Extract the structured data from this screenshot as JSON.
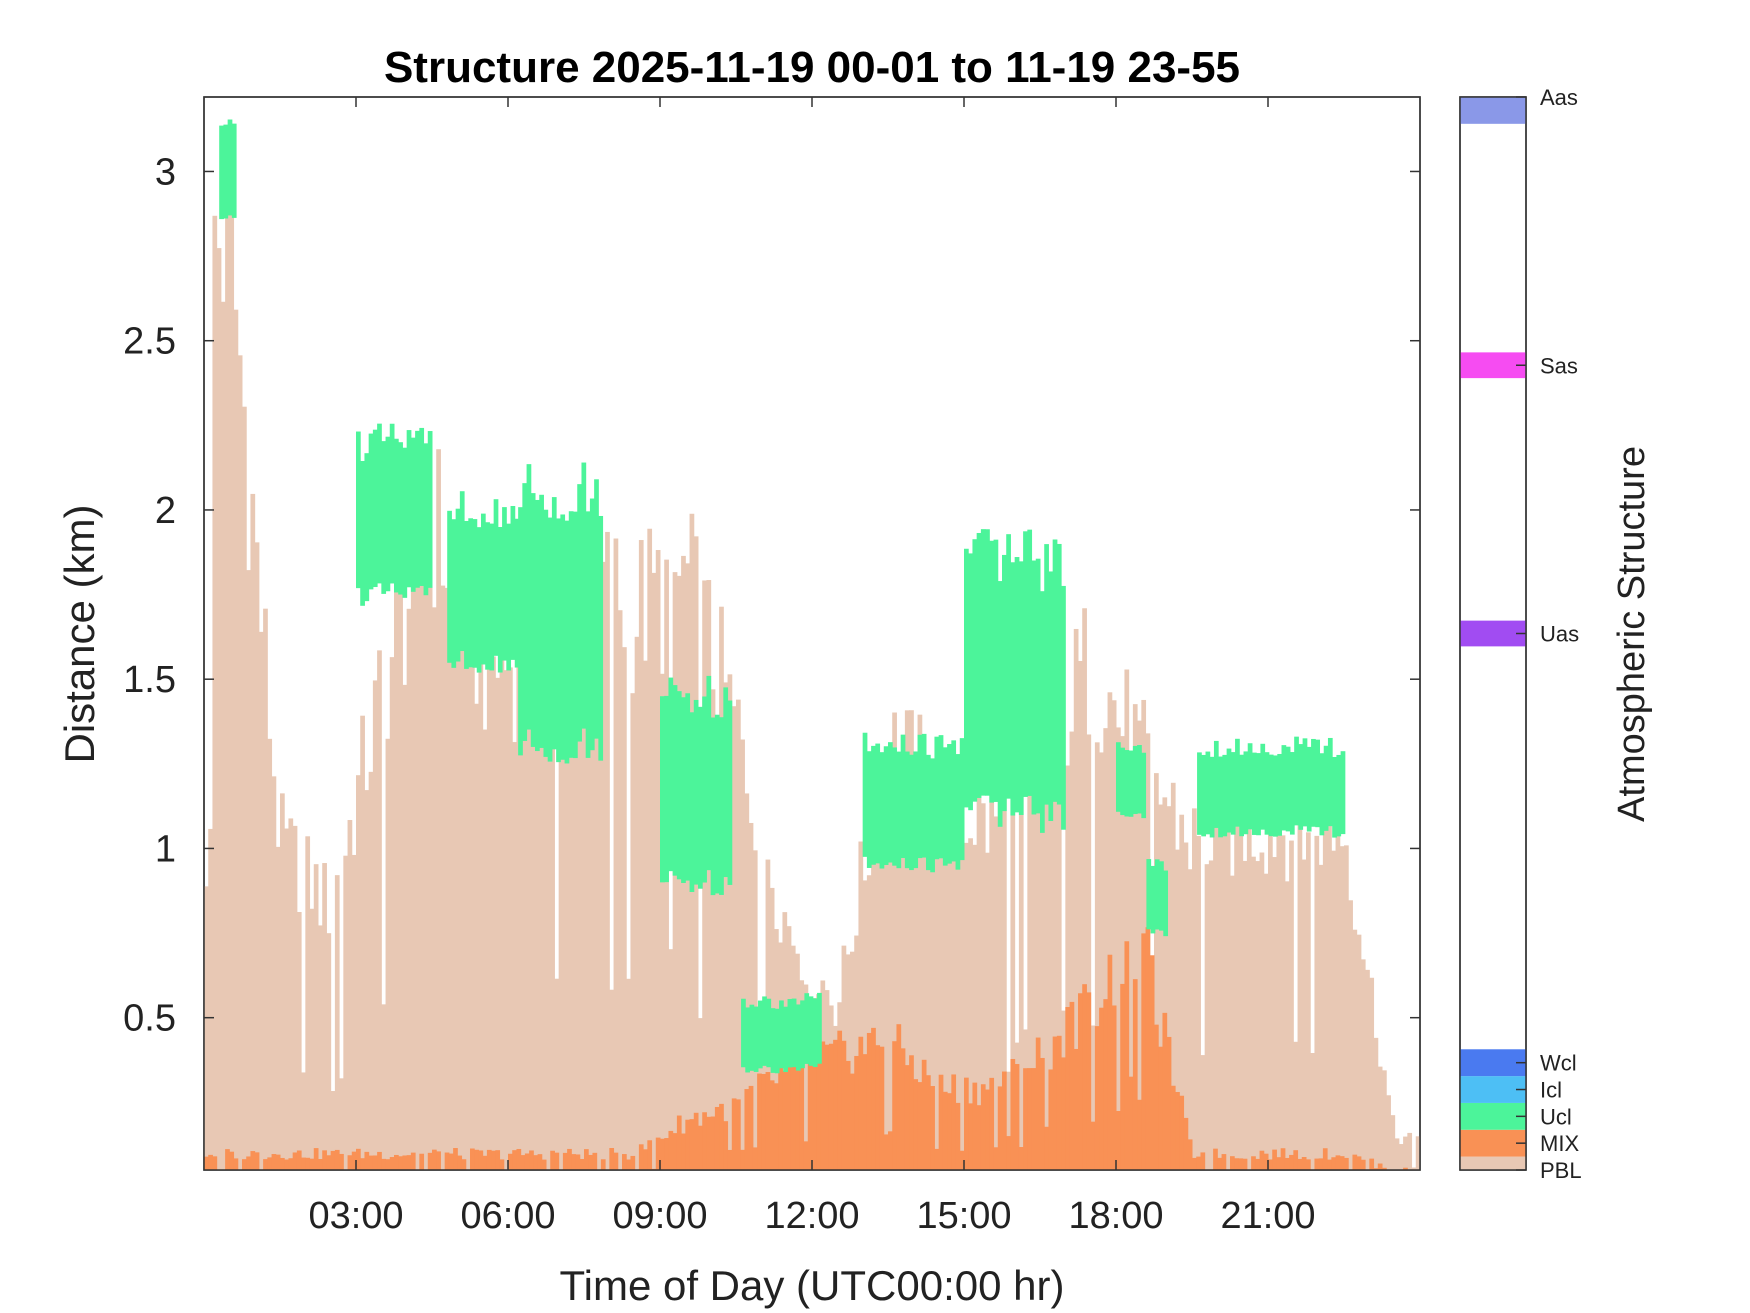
{
  "chart_data": {
    "type": "heatmap",
    "title": "Structure 2025-11-19 00-01 to 11-19 23-55",
    "xlabel": "Time of Day (UTC00:00 hr)",
    "ylabel": "Distance (km)",
    "xlim_hours": [
      0,
      24
    ],
    "ylim_km": [
      0.05,
      3.22
    ],
    "x_ticks": [
      {
        "hour": 3,
        "label": "03:00"
      },
      {
        "hour": 6,
        "label": "06:00"
      },
      {
        "hour": 9,
        "label": "09:00"
      },
      {
        "hour": 12,
        "label": "12:00"
      },
      {
        "hour": 15,
        "label": "15:00"
      },
      {
        "hour": 18,
        "label": "18:00"
      },
      {
        "hour": 21,
        "label": "21:00"
      }
    ],
    "y_ticks": [
      {
        "value": 0.5,
        "label": "0.5"
      },
      {
        "value": 1,
        "label": "1"
      },
      {
        "value": 1.5,
        "label": "1.5"
      },
      {
        "value": 2,
        "label": "2"
      },
      {
        "value": 2.5,
        "label": "2.5"
      },
      {
        "value": 3,
        "label": "3"
      }
    ],
    "colorbar": {
      "label": "Atmospheric Structure",
      "classes": [
        {
          "name": "PBL",
          "color": "#e8c8b4",
          "level": 0.0
        },
        {
          "name": "MIX",
          "color": "#f99155",
          "level": 0.025
        },
        {
          "name": "Ucl",
          "color": "#4cf49a",
          "level": 0.05
        },
        {
          "name": "Icl",
          "color": "#4dbff5",
          "level": 0.075
        },
        {
          "name": "Wcl",
          "color": "#4a7af0",
          "level": 0.1
        },
        {
          "name": "Uas",
          "color": "#a14cf2",
          "level": 0.5
        },
        {
          "name": "Sas",
          "color": "#f64cf2",
          "level": 0.75
        },
        {
          "name": "Aas",
          "color": "#8a98e8",
          "level": 1.0
        }
      ]
    },
    "pbl_top_km_hourly": [
      2.9,
      1.05,
      0.85,
      1.5,
      2.05,
      1.6,
      1.6,
      1.85,
      1.75,
      1.85,
      1.4,
      0.8,
      0.55,
      1.35,
      1.2,
      1.1,
      1.3,
      1.6,
      1.3,
      1.05,
      1.1,
      1.1,
      1.1,
      0.15
    ],
    "mix_top_km_hourly": [
      0.1,
      0.1,
      0.1,
      0.1,
      0.1,
      0.1,
      0.1,
      0.1,
      0.1,
      0.2,
      0.25,
      0.35,
      0.4,
      0.45,
      0.3,
      0.3,
      0.4,
      0.55,
      0.75,
      0.1,
      0.1,
      0.1,
      0.1,
      0.05
    ],
    "cloud_layers": [
      {
        "class": "Ucl",
        "time_start": 0.3,
        "time_end": 0.6,
        "base_km": 2.85,
        "top_km": 3.12
      },
      {
        "class": "Ucl",
        "time_start": 3.0,
        "time_end": 4.5,
        "base_km": 1.75,
        "top_km": 2.2
      },
      {
        "class": "Ucl",
        "time_start": 4.8,
        "time_end": 6.2,
        "base_km": 1.55,
        "top_km": 2.0
      },
      {
        "class": "Ucl",
        "time_start": 6.2,
        "time_end": 7.9,
        "base_km": 1.3,
        "top_km": 2.05
      },
      {
        "class": "Ucl",
        "time_start": 9.0,
        "time_end": 10.4,
        "base_km": 0.9,
        "top_km": 1.45
      },
      {
        "class": "Ucl",
        "time_start": 10.6,
        "time_end": 12.2,
        "base_km": 0.35,
        "top_km": 0.55
      },
      {
        "class": "Ucl",
        "time_start": 13.0,
        "time_end": 15.0,
        "base_km": 0.95,
        "top_km": 1.3
      },
      {
        "class": "Ucl",
        "time_start": 15.0,
        "time_end": 17.0,
        "base_km": 1.1,
        "top_km": 1.85
      },
      {
        "class": "Ucl",
        "time_start": 18.0,
        "time_end": 18.6,
        "base_km": 1.1,
        "top_km": 1.3
      },
      {
        "class": "Ucl",
        "time_start": 18.6,
        "time_end": 19.0,
        "base_km": 0.75,
        "top_km": 0.95
      },
      {
        "class": "Ucl",
        "time_start": 19.6,
        "time_end": 22.5,
        "base_km": 1.05,
        "top_km": 1.3
      }
    ],
    "grid": false
  }
}
